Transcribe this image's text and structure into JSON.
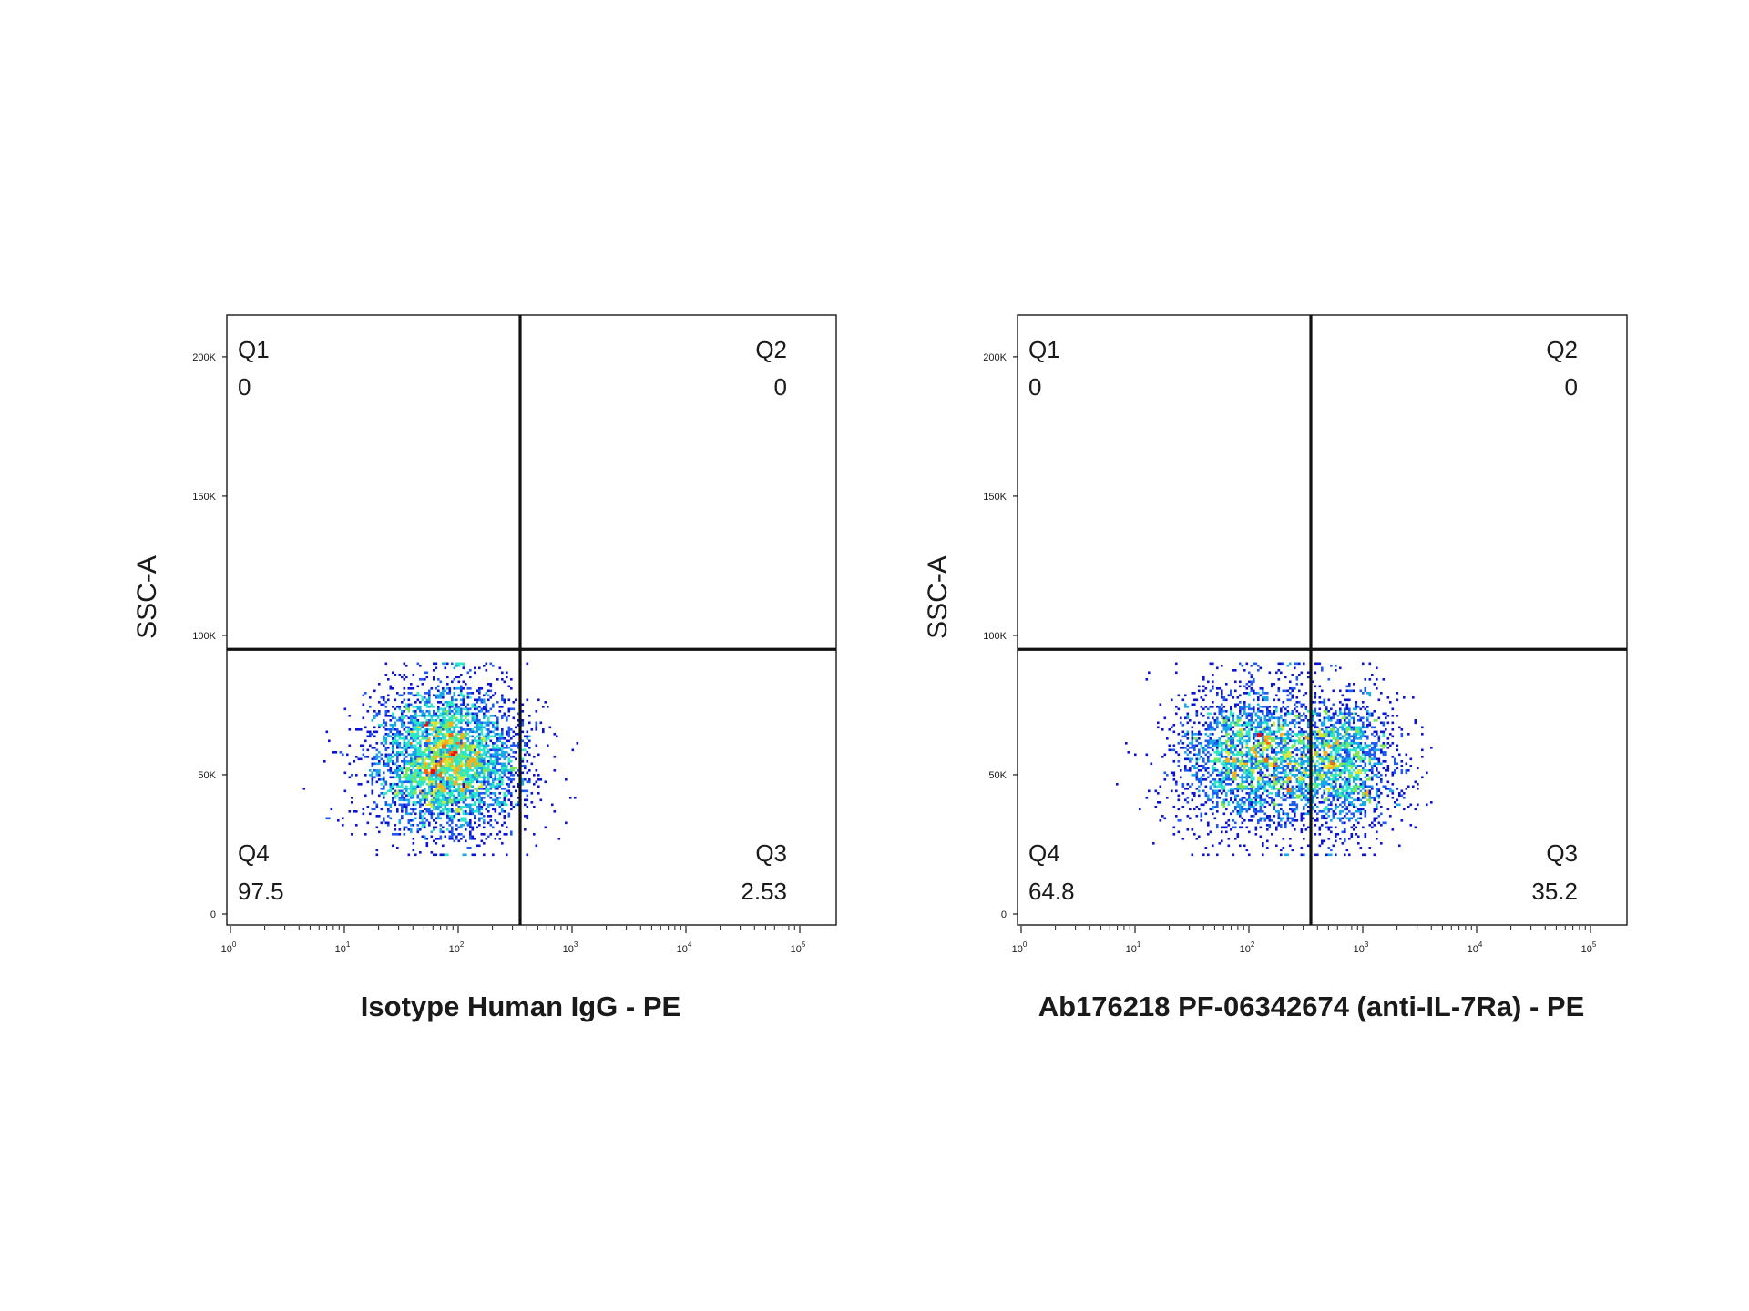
{
  "chart_data": [
    {
      "type": "scatter",
      "plot_style": "pseudocolor density dot plot",
      "xlabel": "Isotype Human IgG - PE",
      "ylabel": "SSC-A",
      "x_scale": "log",
      "xlim": [
        1,
        100000
      ],
      "ylim": [
        0,
        215000
      ],
      "x_ticks": [
        {
          "value": 1,
          "base": "10",
          "exp": "0"
        },
        {
          "value": 10,
          "base": "10",
          "exp": "1"
        },
        {
          "value": 100,
          "base": "10",
          "exp": "2"
        },
        {
          "value": 1000,
          "base": "10",
          "exp": "3"
        },
        {
          "value": 10000,
          "base": "10",
          "exp": "4"
        },
        {
          "value": 100000,
          "base": "10",
          "exp": "5"
        }
      ],
      "y_ticks": [
        {
          "value": 0,
          "label": "0"
        },
        {
          "value": 50000,
          "label": "50K"
        },
        {
          "value": 100000,
          "label": "100K"
        },
        {
          "value": 150000,
          "label": "150K"
        },
        {
          "value": 200000,
          "label": "200K"
        }
      ],
      "gate": {
        "x": 350,
        "y": 95000
      },
      "quadrants": [
        {
          "name": "Q1",
          "value": "0"
        },
        {
          "name": "Q2",
          "value": "0"
        },
        {
          "name": "Q3",
          "value": "2.53"
        },
        {
          "name": "Q4",
          "value": "97.5"
        }
      ],
      "populations": [
        {
          "x_center": 80,
          "y_center": 56000,
          "log_sd_x": 0.33,
          "sd_y": 13500,
          "weight": 1.0
        }
      ],
      "event_count": 4200,
      "seed": 11,
      "grid": false,
      "legend": "none"
    },
    {
      "type": "scatter",
      "plot_style": "pseudocolor density dot plot",
      "xlabel": "Ab176218 PF-06342674 (anti-IL-7Ra) - PE",
      "ylabel": "SSC-A",
      "x_scale": "log",
      "xlim": [
        1,
        100000
      ],
      "ylim": [
        0,
        215000
      ],
      "x_ticks": [
        {
          "value": 1,
          "base": "10",
          "exp": "0"
        },
        {
          "value": 10,
          "base": "10",
          "exp": "1"
        },
        {
          "value": 100,
          "base": "10",
          "exp": "2"
        },
        {
          "value": 1000,
          "base": "10",
          "exp": "3"
        },
        {
          "value": 10000,
          "base": "10",
          "exp": "4"
        },
        {
          "value": 100000,
          "base": "10",
          "exp": "5"
        }
      ],
      "y_ticks": [
        {
          "value": 0,
          "label": "0"
        },
        {
          "value": 50000,
          "label": "50K"
        },
        {
          "value": 100000,
          "label": "100K"
        },
        {
          "value": 150000,
          "label": "150K"
        },
        {
          "value": 200000,
          "label": "200K"
        }
      ],
      "gate": {
        "x": 350,
        "y": 95000
      },
      "quadrants": [
        {
          "name": "Q1",
          "value": "0"
        },
        {
          "name": "Q2",
          "value": "0"
        },
        {
          "name": "Q3",
          "value": "35.2"
        },
        {
          "name": "Q4",
          "value": "64.8"
        }
      ],
      "populations": [
        {
          "x_center": 110,
          "y_center": 57000,
          "log_sd_x": 0.36,
          "sd_y": 13500,
          "weight": 0.6
        },
        {
          "x_center": 650,
          "y_center": 55000,
          "log_sd_x": 0.25,
          "sd_y": 13000,
          "weight": 0.4
        }
      ],
      "event_count": 4200,
      "seed": 29,
      "grid": false,
      "legend": "none"
    }
  ],
  "colors": {
    "axis": "#1a1a1a",
    "gate": "#111111",
    "density_scale": [
      "#0a14d2",
      "#1e5af0",
      "#18a8e8",
      "#2ee6c8",
      "#7ce85a",
      "#d8e83a",
      "#f5b020",
      "#f06a10",
      "#e01010"
    ]
  }
}
